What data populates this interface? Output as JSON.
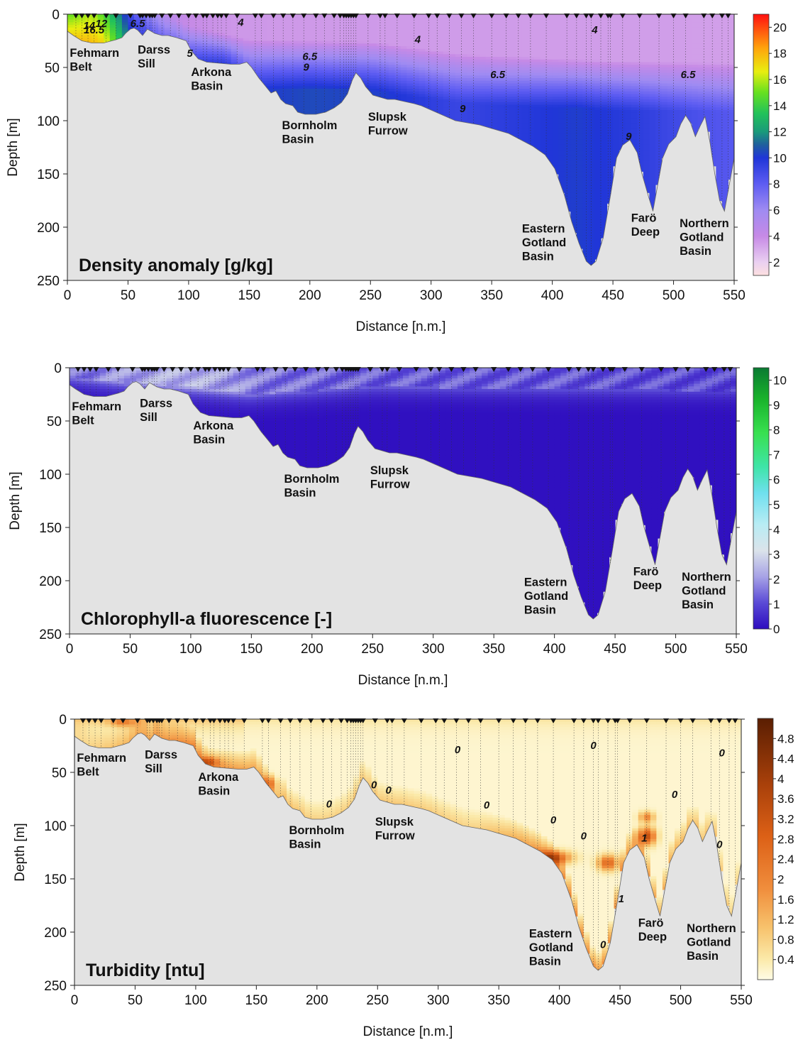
{
  "chart_data": [
    {
      "type": "heatmap",
      "title": "Density anomaly [g/kg]",
      "xlabel": "Distance [n.m.]",
      "ylabel": "Depth [m]",
      "xlim": [
        0,
        550
      ],
      "ylim": [
        250,
        0
      ],
      "x_ticks": [
        "0",
        "50",
        "100",
        "150",
        "200",
        "250",
        "300",
        "350",
        "400",
        "450",
        "500",
        "550"
      ],
      "y_ticks": [
        "0",
        "50",
        "100",
        "150",
        "200",
        "250"
      ],
      "colorbar_ticks": [
        "2",
        "4",
        "6",
        "8",
        "10",
        "12",
        "14",
        "16",
        "18",
        "20"
      ],
      "colorbar_range": [
        1,
        21
      ],
      "contour_labels": [
        "14",
        "12",
        "16.5",
        "6.5",
        "4",
        "4",
        "4",
        "6.5",
        "9",
        "6.5",
        "6.5",
        "9",
        "9",
        "5"
      ],
      "contour_label_points": [
        {
          "text": "14",
          "x": 18,
          "y": 14
        },
        {
          "text": "12",
          "x": 28,
          "y": 12
        },
        {
          "text": "16.5",
          "x": 22,
          "y": 18
        },
        {
          "text": "6.5",
          "x": 58,
          "y": 12
        },
        {
          "text": "4",
          "x": 143,
          "y": 11
        },
        {
          "text": "4",
          "x": 289,
          "y": 27
        },
        {
          "text": "4",
          "x": 435,
          "y": 18
        },
        {
          "text": "6.5",
          "x": 200,
          "y": 43
        },
        {
          "text": "9",
          "x": 197,
          "y": 53
        },
        {
          "text": "6.5",
          "x": 355,
          "y": 60
        },
        {
          "text": "6.5",
          "x": 512,
          "y": 60
        },
        {
          "text": "9",
          "x": 326,
          "y": 92
        },
        {
          "text": "9",
          "x": 463,
          "y": 118
        },
        {
          "text": "5",
          "x": 101,
          "y": 40
        }
      ],
      "regions": [
        {
          "name": "Fehmarn\nBelt",
          "x": 2,
          "y": 40
        },
        {
          "name": "Darss\nSill",
          "x": 58,
          "y": 37
        },
        {
          "name": "Arkona\nBasin",
          "x": 102,
          "y": 58
        },
        {
          "name": "Bornholm\nBasin",
          "x": 177,
          "y": 108
        },
        {
          "name": "Slupsk\nFurrow",
          "x": 248,
          "y": 100
        },
        {
          "name": "Eastern\nGotland\nBasin",
          "x": 375,
          "y": 205
        },
        {
          "name": "Farö\nDeep",
          "x": 465,
          "y": 195
        },
        {
          "name": "Northern\nGotland\nBasin",
          "x": 505,
          "y": 200
        }
      ]
    },
    {
      "type": "heatmap",
      "title": "Chlorophyll-a fluorescence [-]",
      "xlabel": "Distance [n.m.]",
      "ylabel": "Depth [m]",
      "xlim": [
        0,
        550
      ],
      "ylim": [
        250,
        0
      ],
      "x_ticks": [
        "0",
        "50",
        "100",
        "150",
        "200",
        "250",
        "300",
        "350",
        "400",
        "450",
        "500",
        "550"
      ],
      "y_ticks": [
        "0",
        "50",
        "100",
        "150",
        "200",
        "250"
      ],
      "colorbar_ticks": [
        "0",
        "1",
        "2",
        "3",
        "4",
        "5",
        "6",
        "7",
        "8",
        "9",
        "10"
      ],
      "colorbar_range": [
        0,
        10.5
      ],
      "regions": [
        {
          "name": "Fehmarn\nBelt",
          "x": 2,
          "y": 40
        },
        {
          "name": "Darss\nSill",
          "x": 58,
          "y": 37
        },
        {
          "name": "Arkona\nBasin",
          "x": 102,
          "y": 58
        },
        {
          "name": "Bornholm\nBasin",
          "x": 177,
          "y": 108
        },
        {
          "name": "Slupsk\nFurrow",
          "x": 248,
          "y": 100
        },
        {
          "name": "Eastern\nGotland\nBasin",
          "x": 375,
          "y": 205
        },
        {
          "name": "Farö\nDeep",
          "x": 465,
          "y": 195
        },
        {
          "name": "Northern\nGotland\nBasin",
          "x": 505,
          "y": 200
        }
      ]
    },
    {
      "type": "heatmap",
      "title": "Turbidity [ntu]",
      "xlabel": "Distance [n.m.]",
      "ylabel": "Depth [m]",
      "xlim": [
        0,
        550
      ],
      "ylim": [
        250,
        0
      ],
      "x_ticks": [
        "0",
        "50",
        "100",
        "150",
        "200",
        "250",
        "300",
        "350",
        "400",
        "450",
        "500",
        "550"
      ],
      "y_ticks": [
        "0",
        "50",
        "100",
        "150",
        "200",
        "250"
      ],
      "colorbar_ticks": [
        "0.4",
        "0.8",
        "1.2",
        "1.6",
        "2",
        "2.4",
        "2.8",
        "3.2",
        "3.6",
        "4",
        "4.4",
        "4.8"
      ],
      "colorbar_range": [
        0,
        5.2
      ],
      "contour_labels": [
        "0",
        "0",
        "0",
        "0",
        "0",
        "0",
        "0",
        "0",
        "0",
        "0",
        "0",
        "1",
        "0",
        "1"
      ],
      "contour_label_points": [
        {
          "text": "0",
          "x": 210,
          "y": 83
        },
        {
          "text": "0",
          "x": 247,
          "y": 65
        },
        {
          "text": "0",
          "x": 259,
          "y": 70
        },
        {
          "text": "0",
          "x": 316,
          "y": 32
        },
        {
          "text": "0",
          "x": 340,
          "y": 84
        },
        {
          "text": "0",
          "x": 395,
          "y": 98
        },
        {
          "text": "0",
          "x": 420,
          "y": 113
        },
        {
          "text": "0",
          "x": 428,
          "y": 28
        },
        {
          "text": "0",
          "x": 495,
          "y": 74
        },
        {
          "text": "0",
          "x": 534,
          "y": 35
        },
        {
          "text": "0",
          "x": 532,
          "y": 121
        },
        {
          "text": "1",
          "x": 470,
          "y": 115
        },
        {
          "text": "0",
          "x": 436,
          "y": 215
        },
        {
          "text": "1",
          "x": 451,
          "y": 172
        }
      ],
      "regions": [
        {
          "name": "Fehmarn\nBelt",
          "x": 2,
          "y": 40
        },
        {
          "name": "Darss\nSill",
          "x": 58,
          "y": 37
        },
        {
          "name": "Arkona\nBasin",
          "x": 102,
          "y": 58
        },
        {
          "name": "Bornholm\nBasin",
          "x": 177,
          "y": 108
        },
        {
          "name": "Slupsk\nFurrow",
          "x": 248,
          "y": 100
        },
        {
          "name": "Eastern\nGotland\nBasin",
          "x": 375,
          "y": 205
        },
        {
          "name": "Farö\nDeep",
          "x": 465,
          "y": 195
        },
        {
          "name": "Northern\nGotland\nBasin",
          "x": 505,
          "y": 200
        }
      ]
    }
  ],
  "bathymetry": [
    [
      0,
      16
    ],
    [
      5,
      20
    ],
    [
      12,
      25
    ],
    [
      20,
      27
    ],
    [
      30,
      27
    ],
    [
      40,
      24
    ],
    [
      45,
      22
    ],
    [
      48,
      18
    ],
    [
      52,
      14
    ],
    [
      55,
      13
    ],
    [
      58,
      15
    ],
    [
      62,
      20
    ],
    [
      66,
      14
    ],
    [
      72,
      18
    ],
    [
      78,
      20
    ],
    [
      83,
      20
    ],
    [
      90,
      22
    ],
    [
      98,
      25
    ],
    [
      102,
      34
    ],
    [
      108,
      42
    ],
    [
      115,
      45
    ],
    [
      125,
      46
    ],
    [
      135,
      47
    ],
    [
      142,
      47
    ],
    [
      148,
      45
    ],
    [
      152,
      50
    ],
    [
      158,
      60
    ],
    [
      163,
      67
    ],
    [
      168,
      74
    ],
    [
      172,
      72
    ],
    [
      176,
      80
    ],
    [
      180,
      84
    ],
    [
      186,
      86
    ],
    [
      190,
      92
    ],
    [
      196,
      94
    ],
    [
      205,
      94
    ],
    [
      213,
      92
    ],
    [
      220,
      88
    ],
    [
      226,
      83
    ],
    [
      231,
      75
    ],
    [
      235,
      62
    ],
    [
      238,
      55
    ],
    [
      242,
      60
    ],
    [
      246,
      68
    ],
    [
      252,
      76
    ],
    [
      258,
      78
    ],
    [
      264,
      80
    ],
    [
      270,
      80
    ],
    [
      278,
      82
    ],
    [
      286,
      84
    ],
    [
      292,
      86
    ],
    [
      300,
      90
    ],
    [
      308,
      94
    ],
    [
      314,
      97
    ],
    [
      320,
      100
    ],
    [
      330,
      102
    ],
    [
      340,
      104
    ],
    [
      352,
      108
    ],
    [
      364,
      112
    ],
    [
      374,
      118
    ],
    [
      384,
      124
    ],
    [
      394,
      132
    ],
    [
      402,
      145
    ],
    [
      410,
      170
    ],
    [
      416,
      195
    ],
    [
      422,
      215
    ],
    [
      428,
      232
    ],
    [
      432,
      236
    ],
    [
      436,
      232
    ],
    [
      442,
      210
    ],
    [
      448,
      170
    ],
    [
      453,
      135
    ],
    [
      458,
      123
    ],
    [
      464,
      118
    ],
    [
      470,
      130
    ],
    [
      474,
      150
    ],
    [
      479,
      170
    ],
    [
      483,
      185
    ],
    [
      487,
      160
    ],
    [
      491,
      135
    ],
    [
      496,
      122
    ],
    [
      502,
      115
    ],
    [
      506,
      103
    ],
    [
      510,
      95
    ],
    [
      514,
      102
    ],
    [
      518,
      115
    ],
    [
      522,
      105
    ],
    [
      526,
      96
    ],
    [
      530,
      120
    ],
    [
      534,
      150
    ],
    [
      538,
      175
    ],
    [
      542,
      185
    ],
    [
      546,
      160
    ],
    [
      550,
      135
    ]
  ],
  "station_x": [
    7,
    12,
    17,
    22,
    32,
    40,
    52,
    60,
    62,
    65,
    68,
    70,
    72,
    78,
    85,
    92,
    100,
    106,
    112,
    115,
    120,
    124,
    127,
    131,
    140,
    155,
    160,
    170,
    178,
    186,
    195,
    205,
    212,
    220,
    225,
    228,
    230,
    232,
    234,
    236,
    238,
    248,
    258,
    262,
    272,
    286,
    298,
    305,
    315,
    325,
    335,
    350,
    362,
    372,
    382,
    395,
    412,
    420,
    428,
    432,
    440,
    446,
    448,
    458,
    472,
    488,
    500,
    510,
    525,
    532,
    540,
    545
  ]
}
